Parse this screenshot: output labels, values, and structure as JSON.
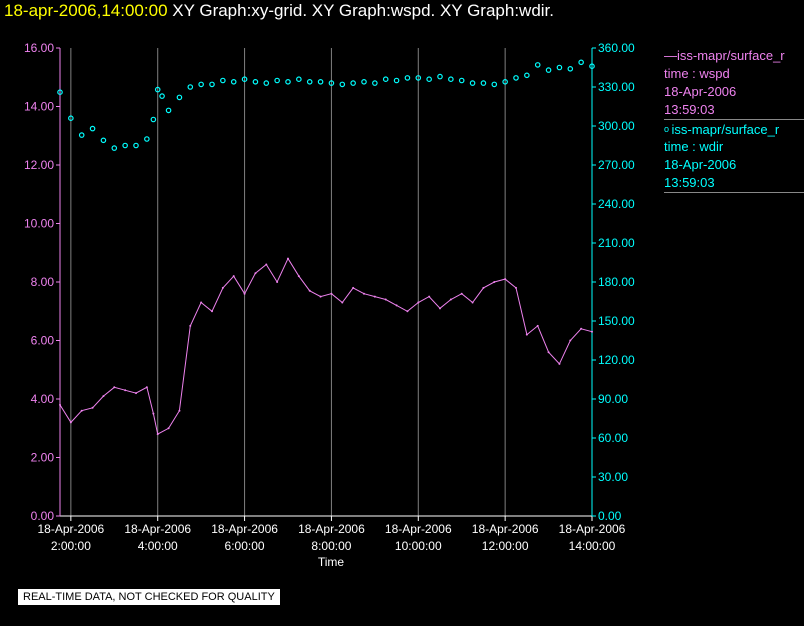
{
  "header": {
    "timestamp": "18-apr-2006,14:00:00",
    "graphs": "  XY Graph:xy-grid.  XY Graph:wspd.  XY Graph:wdir."
  },
  "legend": [
    {
      "symbol": "line",
      "source": "iss-mapr/surface_r",
      "label": "time : wspd",
      "date": "18-Apr-2006",
      "time": "13:59:03",
      "color": "#ee82ee"
    },
    {
      "symbol": "circle",
      "source": "iss-mapr/surface_r",
      "label": "time : wdir",
      "date": "18-Apr-2006",
      "time": "13:59:03",
      "color": "#00ffff"
    }
  ],
  "footer_note": "REAL-TIME DATA, NOT CHECKED FOR QUALITY",
  "chart_data": {
    "type": "line",
    "xlabel": "Time",
    "x_ticks": [
      {
        "date": "18-Apr-2006",
        "time": "2:00:00"
      },
      {
        "date": "18-Apr-2006",
        "time": "4:00:00"
      },
      {
        "date": "18-Apr-2006",
        "time": "6:00:00"
      },
      {
        "date": "18-Apr-2006",
        "time": "8:00:00"
      },
      {
        "date": "18-Apr-2006",
        "time": "10:00:00"
      },
      {
        "date": "18-Apr-2006",
        "time": "12:00:00"
      },
      {
        "date": "18-Apr-2006",
        "time": "14:00:00"
      }
    ],
    "xlim_hours": [
      1.75,
      14.0
    ],
    "grid": "vertical lines at x ticks",
    "left_axis": {
      "series": "wspd",
      "ylim": [
        0,
        16
      ],
      "ticks": [
        "0.00",
        "2.00",
        "4.00",
        "6.00",
        "8.00",
        "10.00",
        "12.00",
        "14.00",
        "16.00"
      ],
      "color": "#ee82ee"
    },
    "right_axis": {
      "series": "wdir",
      "ylim": [
        0,
        360
      ],
      "ticks": [
        "0.00",
        "30.00",
        "60.00",
        "90.00",
        "120.00",
        "150.00",
        "180.00",
        "210.00",
        "240.00",
        "270.00",
        "300.00",
        "330.00",
        "360.00"
      ],
      "color": "#00ffff"
    },
    "series": [
      {
        "name": "wspd",
        "style": "line",
        "color": "#ee82ee",
        "axis": "left",
        "x_hours": [
          1.75,
          2.0,
          2.25,
          2.5,
          2.75,
          3.0,
          3.25,
          3.5,
          3.75,
          3.9,
          4.0,
          4.25,
          4.5,
          4.75,
          5.0,
          5.25,
          5.5,
          5.75,
          6.0,
          6.25,
          6.5,
          6.75,
          7.0,
          7.25,
          7.5,
          7.75,
          8.0,
          8.25,
          8.5,
          8.75,
          9.0,
          9.25,
          9.5,
          9.75,
          10.0,
          10.25,
          10.5,
          10.75,
          11.0,
          11.25,
          11.5,
          11.75,
          12.0,
          12.25,
          12.5,
          12.75,
          13.0,
          13.25,
          13.5,
          13.75,
          14.0
        ],
        "values": [
          3.8,
          3.2,
          3.6,
          3.7,
          4.1,
          4.4,
          4.3,
          4.2,
          4.4,
          3.5,
          2.8,
          3.0,
          3.6,
          6.5,
          7.3,
          7.0,
          7.8,
          8.2,
          7.6,
          8.3,
          8.6,
          8.0,
          8.8,
          8.2,
          7.7,
          7.5,
          7.6,
          7.3,
          7.8,
          7.6,
          7.5,
          7.4,
          7.2,
          7.0,
          7.3,
          7.5,
          7.1,
          7.4,
          7.6,
          7.3,
          7.8,
          8.0,
          8.1,
          7.8,
          6.2,
          6.5,
          5.6,
          5.2,
          6.0,
          6.4,
          6.3
        ]
      },
      {
        "name": "wdir",
        "style": "circles",
        "color": "#00ffff",
        "axis": "right",
        "x_hours": [
          1.75,
          2.0,
          2.25,
          2.5,
          2.75,
          3.0,
          3.25,
          3.5,
          3.75,
          3.9,
          4.0,
          4.1,
          4.25,
          4.5,
          4.75,
          5.0,
          5.25,
          5.5,
          5.75,
          6.0,
          6.25,
          6.5,
          6.75,
          7.0,
          7.25,
          7.5,
          7.75,
          8.0,
          8.25,
          8.5,
          8.75,
          9.0,
          9.25,
          9.5,
          9.75,
          10.0,
          10.25,
          10.5,
          10.75,
          11.0,
          11.25,
          11.5,
          11.75,
          12.0,
          12.25,
          12.5,
          12.75,
          13.0,
          13.25,
          13.5,
          13.75,
          14.0
        ],
        "values": [
          326,
          306,
          293,
          298,
          289,
          283,
          285,
          285,
          290,
          305,
          328,
          323,
          312,
          322,
          330,
          332,
          332,
          335,
          334,
          336,
          334,
          333,
          335,
          334,
          336,
          334,
          334,
          333,
          332,
          333,
          334,
          333,
          336,
          335,
          337,
          337,
          336,
          338,
          336,
          335,
          333,
          333,
          332,
          334,
          337,
          339,
          347,
          343,
          345,
          344,
          349,
          346
        ]
      }
    ]
  }
}
